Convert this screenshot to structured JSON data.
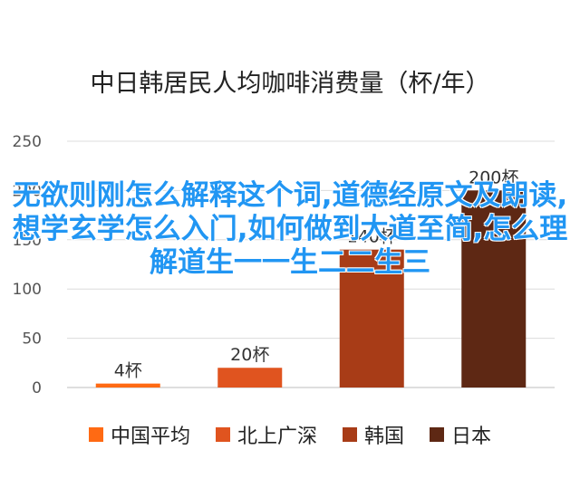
{
  "chart_data": {
    "type": "bar",
    "title": "中日韩居民人均咖啡消费量（杯/年）",
    "categories": [
      "中国平均",
      "北上广深",
      "韩国",
      "日本"
    ],
    "values": [
      4,
      20,
      140,
      200
    ],
    "data_labels": [
      "4杯",
      "20杯",
      "140杯",
      "200杯"
    ],
    "colors": [
      "#ff6a13",
      "#e0541f",
      "#a83c17",
      "#5e2814"
    ],
    "ylim": [
      0,
      250
    ],
    "yticks": [
      0,
      50,
      100,
      150,
      200,
      250
    ],
    "grid": true,
    "legend_position": "bottom"
  },
  "overlay": {
    "text": "无欲则刚怎么解释这个词,道德经原文及朗读,想学玄学怎么入门,如何做到大道至简,怎么理解道生一一生二二生三"
  }
}
